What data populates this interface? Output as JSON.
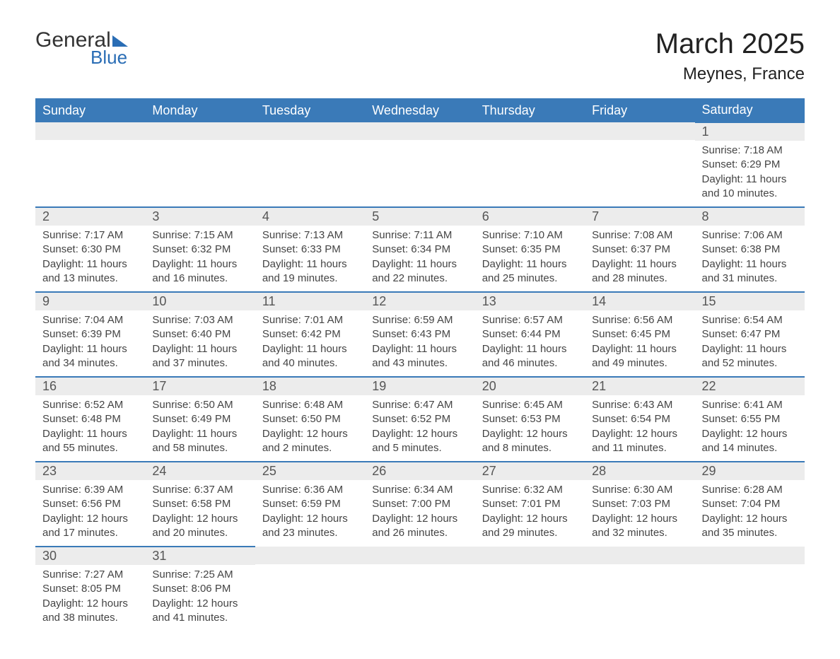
{
  "logo": {
    "text1": "General",
    "text2": "Blue",
    "color_primary": "#333333",
    "color_accent": "#2a6db5"
  },
  "title": "March 2025",
  "location": "Meynes, France",
  "colors": {
    "header_bg": "#3a7ab8",
    "header_text": "#ffffff",
    "day_number_bg": "#ececec",
    "day_number_text": "#555555",
    "content_text": "#444444",
    "border": "#3a7ab8",
    "background": "#ffffff"
  },
  "weekdays": [
    "Sunday",
    "Monday",
    "Tuesday",
    "Wednesday",
    "Thursday",
    "Friday",
    "Saturday"
  ],
  "weeks": [
    [
      null,
      null,
      null,
      null,
      null,
      null,
      {
        "day": "1",
        "sunrise": "Sunrise: 7:18 AM",
        "sunset": "Sunset: 6:29 PM",
        "daylight": "Daylight: 11 hours and 10 minutes."
      }
    ],
    [
      {
        "day": "2",
        "sunrise": "Sunrise: 7:17 AM",
        "sunset": "Sunset: 6:30 PM",
        "daylight": "Daylight: 11 hours and 13 minutes."
      },
      {
        "day": "3",
        "sunrise": "Sunrise: 7:15 AM",
        "sunset": "Sunset: 6:32 PM",
        "daylight": "Daylight: 11 hours and 16 minutes."
      },
      {
        "day": "4",
        "sunrise": "Sunrise: 7:13 AM",
        "sunset": "Sunset: 6:33 PM",
        "daylight": "Daylight: 11 hours and 19 minutes."
      },
      {
        "day": "5",
        "sunrise": "Sunrise: 7:11 AM",
        "sunset": "Sunset: 6:34 PM",
        "daylight": "Daylight: 11 hours and 22 minutes."
      },
      {
        "day": "6",
        "sunrise": "Sunrise: 7:10 AM",
        "sunset": "Sunset: 6:35 PM",
        "daylight": "Daylight: 11 hours and 25 minutes."
      },
      {
        "day": "7",
        "sunrise": "Sunrise: 7:08 AM",
        "sunset": "Sunset: 6:37 PM",
        "daylight": "Daylight: 11 hours and 28 minutes."
      },
      {
        "day": "8",
        "sunrise": "Sunrise: 7:06 AM",
        "sunset": "Sunset: 6:38 PM",
        "daylight": "Daylight: 11 hours and 31 minutes."
      }
    ],
    [
      {
        "day": "9",
        "sunrise": "Sunrise: 7:04 AM",
        "sunset": "Sunset: 6:39 PM",
        "daylight": "Daylight: 11 hours and 34 minutes."
      },
      {
        "day": "10",
        "sunrise": "Sunrise: 7:03 AM",
        "sunset": "Sunset: 6:40 PM",
        "daylight": "Daylight: 11 hours and 37 minutes."
      },
      {
        "day": "11",
        "sunrise": "Sunrise: 7:01 AM",
        "sunset": "Sunset: 6:42 PM",
        "daylight": "Daylight: 11 hours and 40 minutes."
      },
      {
        "day": "12",
        "sunrise": "Sunrise: 6:59 AM",
        "sunset": "Sunset: 6:43 PM",
        "daylight": "Daylight: 11 hours and 43 minutes."
      },
      {
        "day": "13",
        "sunrise": "Sunrise: 6:57 AM",
        "sunset": "Sunset: 6:44 PM",
        "daylight": "Daylight: 11 hours and 46 minutes."
      },
      {
        "day": "14",
        "sunrise": "Sunrise: 6:56 AM",
        "sunset": "Sunset: 6:45 PM",
        "daylight": "Daylight: 11 hours and 49 minutes."
      },
      {
        "day": "15",
        "sunrise": "Sunrise: 6:54 AM",
        "sunset": "Sunset: 6:47 PM",
        "daylight": "Daylight: 11 hours and 52 minutes."
      }
    ],
    [
      {
        "day": "16",
        "sunrise": "Sunrise: 6:52 AM",
        "sunset": "Sunset: 6:48 PM",
        "daylight": "Daylight: 11 hours and 55 minutes."
      },
      {
        "day": "17",
        "sunrise": "Sunrise: 6:50 AM",
        "sunset": "Sunset: 6:49 PM",
        "daylight": "Daylight: 11 hours and 58 minutes."
      },
      {
        "day": "18",
        "sunrise": "Sunrise: 6:48 AM",
        "sunset": "Sunset: 6:50 PM",
        "daylight": "Daylight: 12 hours and 2 minutes."
      },
      {
        "day": "19",
        "sunrise": "Sunrise: 6:47 AM",
        "sunset": "Sunset: 6:52 PM",
        "daylight": "Daylight: 12 hours and 5 minutes."
      },
      {
        "day": "20",
        "sunrise": "Sunrise: 6:45 AM",
        "sunset": "Sunset: 6:53 PM",
        "daylight": "Daylight: 12 hours and 8 minutes."
      },
      {
        "day": "21",
        "sunrise": "Sunrise: 6:43 AM",
        "sunset": "Sunset: 6:54 PM",
        "daylight": "Daylight: 12 hours and 11 minutes."
      },
      {
        "day": "22",
        "sunrise": "Sunrise: 6:41 AM",
        "sunset": "Sunset: 6:55 PM",
        "daylight": "Daylight: 12 hours and 14 minutes."
      }
    ],
    [
      {
        "day": "23",
        "sunrise": "Sunrise: 6:39 AM",
        "sunset": "Sunset: 6:56 PM",
        "daylight": "Daylight: 12 hours and 17 minutes."
      },
      {
        "day": "24",
        "sunrise": "Sunrise: 6:37 AM",
        "sunset": "Sunset: 6:58 PM",
        "daylight": "Daylight: 12 hours and 20 minutes."
      },
      {
        "day": "25",
        "sunrise": "Sunrise: 6:36 AM",
        "sunset": "Sunset: 6:59 PM",
        "daylight": "Daylight: 12 hours and 23 minutes."
      },
      {
        "day": "26",
        "sunrise": "Sunrise: 6:34 AM",
        "sunset": "Sunset: 7:00 PM",
        "daylight": "Daylight: 12 hours and 26 minutes."
      },
      {
        "day": "27",
        "sunrise": "Sunrise: 6:32 AM",
        "sunset": "Sunset: 7:01 PM",
        "daylight": "Daylight: 12 hours and 29 minutes."
      },
      {
        "day": "28",
        "sunrise": "Sunrise: 6:30 AM",
        "sunset": "Sunset: 7:03 PM",
        "daylight": "Daylight: 12 hours and 32 minutes."
      },
      {
        "day": "29",
        "sunrise": "Sunrise: 6:28 AM",
        "sunset": "Sunset: 7:04 PM",
        "daylight": "Daylight: 12 hours and 35 minutes."
      }
    ],
    [
      {
        "day": "30",
        "sunrise": "Sunrise: 7:27 AM",
        "sunset": "Sunset: 8:05 PM",
        "daylight": "Daylight: 12 hours and 38 minutes."
      },
      {
        "day": "31",
        "sunrise": "Sunrise: 7:25 AM",
        "sunset": "Sunset: 8:06 PM",
        "daylight": "Daylight: 12 hours and 41 minutes."
      },
      null,
      null,
      null,
      null,
      null
    ]
  ]
}
